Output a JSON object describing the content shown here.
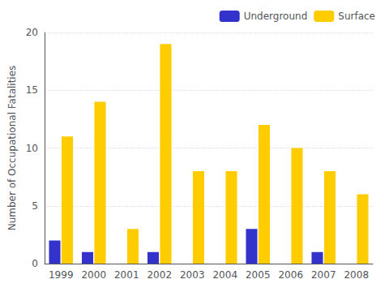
{
  "chart_data": {
    "type": "bar",
    "categories": [
      "1999",
      "2000",
      "2001",
      "2002",
      "2003",
      "2004",
      "2005",
      "2006",
      "2007",
      "2008"
    ],
    "series": [
      {
        "name": "Underground",
        "color": "#3333cc",
        "values": [
          2,
          1,
          0,
          1,
          0,
          0,
          3,
          0,
          1,
          0
        ]
      },
      {
        "name": "Surface",
        "color": "#ffcc00",
        "values": [
          11,
          14,
          3,
          19,
          8,
          8,
          12,
          10,
          8,
          6
        ]
      }
    ],
    "ylabel": "Number of Occupational Fatalities",
    "ylim": [
      0,
      20
    ],
    "yticks": [
      0,
      5,
      10,
      15,
      20
    ],
    "grid": true,
    "legend": "upper right"
  }
}
